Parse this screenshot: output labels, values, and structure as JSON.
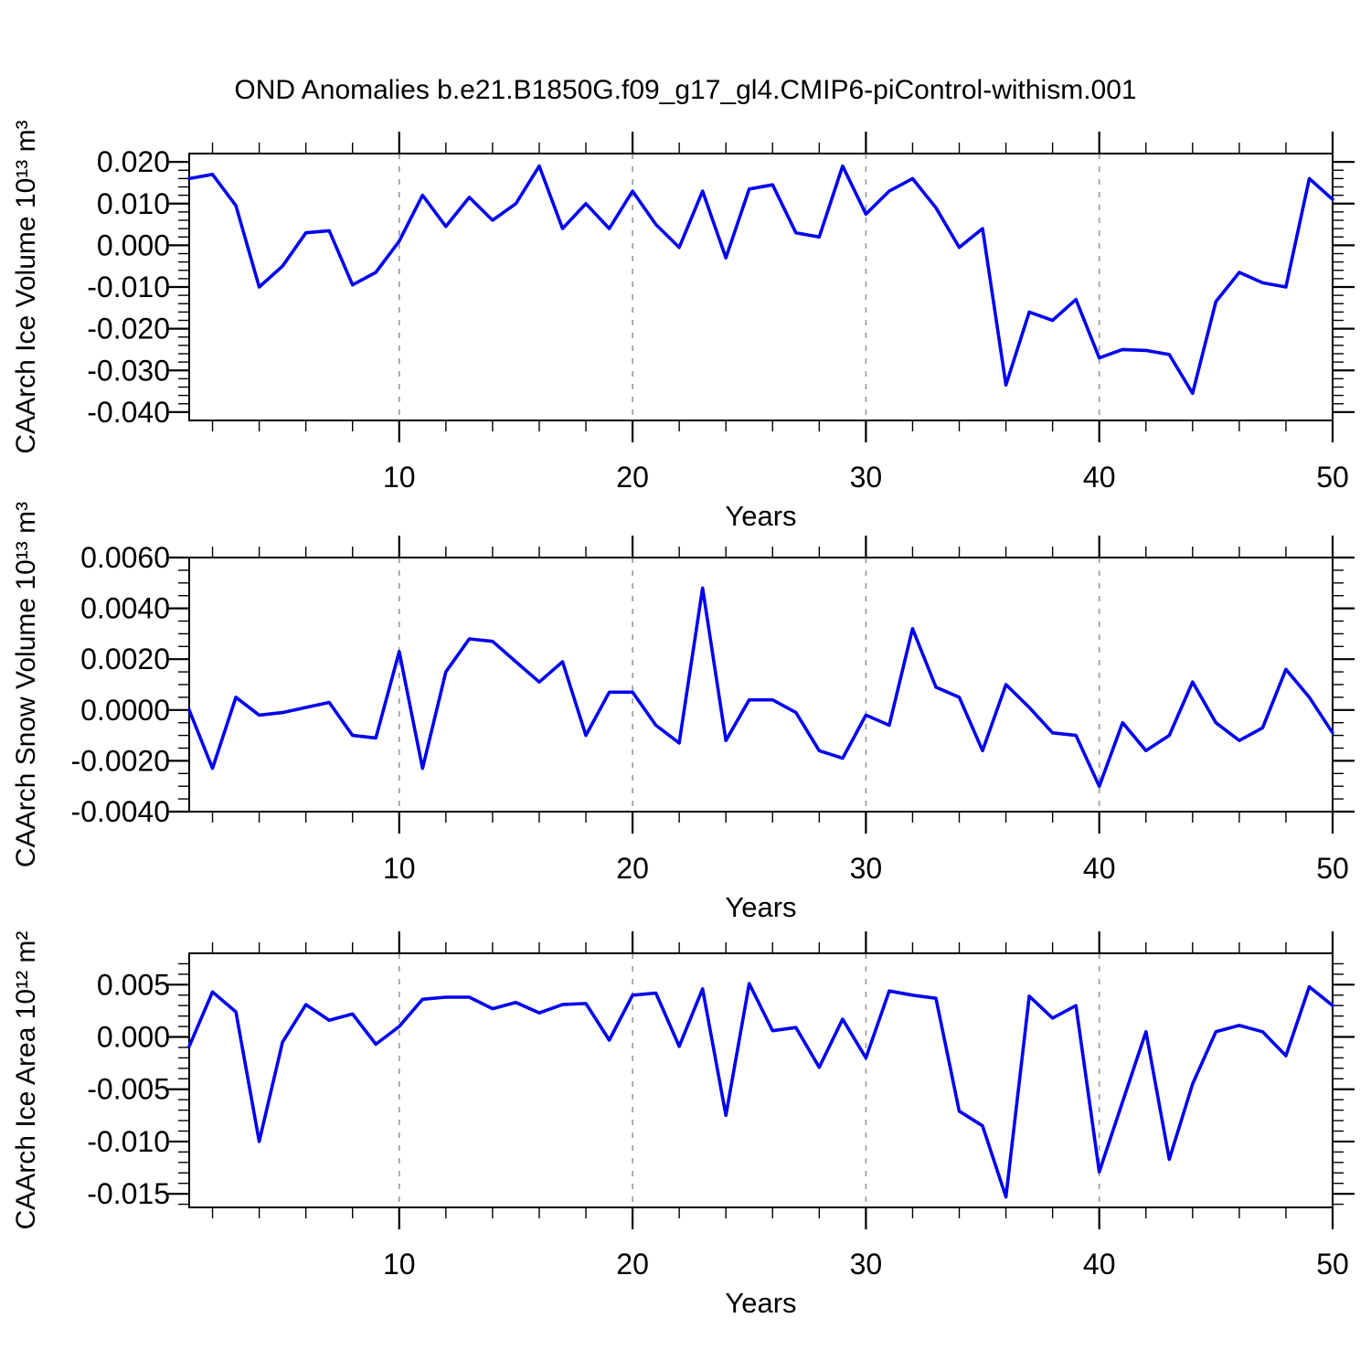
{
  "title": "OND Anomalies b.e21.B1850G.f09_g17_gl4.CMIP6-piControl-withism.001",
  "styles": {
    "line_color": "#0000ee",
    "frame_color": "#000000",
    "grid_color": "#999999",
    "text_color": "#000000"
  },
  "chart_data": [
    {
      "type": "line",
      "title": "",
      "xlabel": "Years",
      "ylabel": "CAArch Ice Volume 10¹³ m³",
      "xlim": [
        1,
        50
      ],
      "ylim": [
        -0.042,
        0.022
      ],
      "xticks": [
        10,
        20,
        30,
        40,
        50
      ],
      "xtick_labels": [
        "10",
        "20",
        "30",
        "40",
        "50"
      ],
      "x_minor_step": 2,
      "grid_x": [
        10,
        20,
        30,
        40
      ],
      "yticks": [
        0.02,
        0.01,
        0.0,
        -0.01,
        -0.02,
        -0.03,
        -0.04
      ],
      "ytick_labels": [
        "0.020",
        "0.010",
        "0.000",
        "-0.010",
        "-0.020",
        "-0.030",
        "-0.040"
      ],
      "y_minor_step": 0.002,
      "legend": "none",
      "grid": "vertical-dashed",
      "x": [
        1,
        2,
        3,
        4,
        5,
        6,
        7,
        8,
        9,
        10,
        11,
        12,
        13,
        14,
        15,
        16,
        17,
        18,
        19,
        20,
        21,
        22,
        23,
        24,
        25,
        26,
        27,
        28,
        29,
        30,
        31,
        32,
        33,
        34,
        35,
        36,
        37,
        38,
        39,
        40,
        41,
        42,
        43,
        44,
        45,
        46,
        47,
        48,
        49,
        50
      ],
      "values": [
        0.016,
        0.017,
        0.0095,
        -0.01,
        -0.005,
        0.003,
        0.0035,
        -0.0095,
        -0.0065,
        0.001,
        0.012,
        0.0045,
        0.0115,
        0.006,
        0.01,
        0.019,
        0.004,
        0.01,
        0.004,
        0.013,
        0.005,
        -0.0005,
        0.013,
        -0.003,
        0.0135,
        0.0145,
        0.003,
        0.002,
        0.019,
        0.0075,
        0.013,
        0.016,
        0.009,
        -0.0005,
        0.004,
        -0.0335,
        -0.016,
        -0.018,
        -0.013,
        -0.027,
        -0.025,
        -0.0252,
        -0.0262,
        -0.0355,
        -0.0135,
        -0.0065,
        -0.009,
        -0.01,
        0.016,
        0.011
      ]
    },
    {
      "type": "line",
      "title": "",
      "xlabel": "Years",
      "ylabel": "CAArch Snow Volume 10¹³ m³",
      "xlim": [
        1,
        50
      ],
      "ylim": [
        -0.004,
        0.006
      ],
      "xticks": [
        10,
        20,
        30,
        40,
        50
      ],
      "xtick_labels": [
        "10",
        "20",
        "30",
        "40",
        "50"
      ],
      "x_minor_step": 2,
      "grid_x": [
        10,
        20,
        30,
        40
      ],
      "yticks": [
        0.006,
        0.004,
        0.002,
        0.0,
        -0.002,
        -0.004
      ],
      "ytick_labels": [
        "0.0060",
        "0.0040",
        "0.0020",
        "0.0000",
        "-0.0020",
        "-0.0040"
      ],
      "y_minor_step": 0.0005,
      "legend": "none",
      "grid": "vertical-dashed",
      "x": [
        1,
        2,
        3,
        4,
        5,
        6,
        7,
        8,
        9,
        10,
        11,
        12,
        13,
        14,
        15,
        16,
        17,
        18,
        19,
        20,
        21,
        22,
        23,
        24,
        25,
        26,
        27,
        28,
        29,
        30,
        31,
        32,
        33,
        34,
        35,
        36,
        37,
        38,
        39,
        40,
        41,
        42,
        43,
        44,
        45,
        46,
        47,
        48,
        49,
        50
      ],
      "values": [
        0.0,
        -0.0023,
        0.0005,
        -0.0002,
        -0.0001,
        0.0001,
        0.0003,
        -0.001,
        -0.0011,
        0.0023,
        -0.0023,
        0.0015,
        0.0028,
        0.0027,
        0.0019,
        0.0011,
        0.0019,
        -0.001,
        0.0007,
        0.0007,
        -0.0006,
        -0.0013,
        0.0048,
        -0.0012,
        0.0004,
        0.0004,
        -0.0001,
        -0.0016,
        -0.0019,
        -0.0002,
        -0.0006,
        0.0032,
        0.0009,
        0.0005,
        -0.0016,
        0.001,
        0.0001,
        -0.0009,
        -0.001,
        -0.003,
        -0.0005,
        -0.0016,
        -0.001,
        0.0011,
        -0.0005,
        -0.0012,
        -0.0007,
        0.0016,
        0.0005,
        -0.0009
      ]
    },
    {
      "type": "line",
      "title": "",
      "xlabel": "Years",
      "ylabel": "CAArch Ice Area 10¹² m²",
      "xlim": [
        1,
        50
      ],
      "ylim": [
        -0.0163,
        0.008
      ],
      "xticks": [
        10,
        20,
        30,
        40,
        50
      ],
      "xtick_labels": [
        "10",
        "20",
        "30",
        "40",
        "50"
      ],
      "x_minor_step": 2,
      "grid_x": [
        10,
        20,
        30,
        40
      ],
      "yticks": [
        0.005,
        0.0,
        -0.005,
        -0.01,
        -0.015
      ],
      "ytick_labels": [
        "0.005",
        "0.000",
        "-0.005",
        "-0.010",
        "-0.015"
      ],
      "y_minor_step": 0.001,
      "legend": "none",
      "grid": "vertical-dashed",
      "x": [
        1,
        2,
        3,
        4,
        5,
        6,
        7,
        8,
        9,
        10,
        11,
        12,
        13,
        14,
        15,
        16,
        17,
        18,
        19,
        20,
        21,
        22,
        23,
        24,
        25,
        26,
        27,
        28,
        29,
        30,
        31,
        32,
        33,
        34,
        35,
        36,
        37,
        38,
        39,
        40,
        41,
        42,
        43,
        44,
        45,
        46,
        47,
        48,
        49,
        50
      ],
      "values": [
        -0.0009,
        0.0043,
        0.0024,
        -0.01,
        -0.0005,
        0.0031,
        0.0016,
        0.0022,
        -0.0007,
        0.001,
        0.0036,
        0.0038,
        0.0038,
        0.0027,
        0.0033,
        0.0023,
        0.0031,
        0.0032,
        -0.0003,
        0.004,
        0.0042,
        -0.0009,
        0.0046,
        -0.0075,
        0.0051,
        0.0006,
        0.0009,
        -0.0029,
        0.0017,
        -0.002,
        0.0044,
        0.004,
        0.0037,
        -0.0071,
        -0.0085,
        -0.0153,
        0.0039,
        0.0018,
        0.003,
        -0.0129,
        -0.0062,
        0.0005,
        -0.0117,
        -0.0045,
        0.0005,
        0.0011,
        0.0005,
        -0.0018,
        0.0048,
        0.003
      ]
    }
  ]
}
